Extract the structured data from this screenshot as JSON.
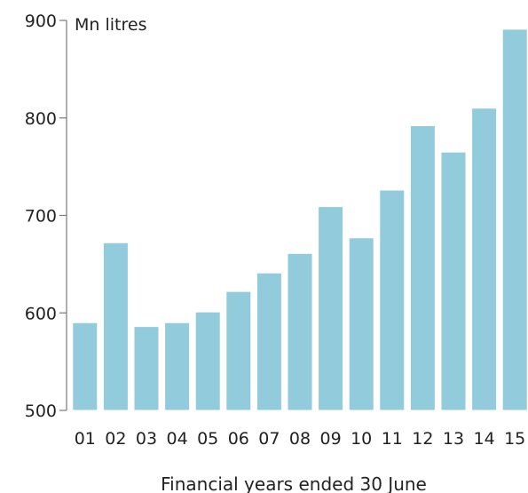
{
  "chart_data": {
    "type": "bar",
    "title": "",
    "unit_label": "Mn litres",
    "xlabel": "Financial years ended 30 June",
    "ylabel": "",
    "categories": [
      "01",
      "02",
      "03",
      "04",
      "05",
      "06",
      "07",
      "08",
      "09",
      "10",
      "11",
      "12",
      "13",
      "14",
      "15"
    ],
    "values": [
      590,
      672,
      586,
      590,
      601,
      622,
      641,
      661,
      709,
      677,
      726,
      792,
      765,
      810,
      891
    ],
    "ylim": [
      500,
      900
    ],
    "yticks": [
      500,
      600,
      700,
      800,
      900
    ],
    "grid": false,
    "legend": "none",
    "colors": {
      "bar_fill": "#92cbdc",
      "bar_edge": "#ffffff",
      "axis": "#7a7a7a",
      "text": "#222222"
    }
  }
}
